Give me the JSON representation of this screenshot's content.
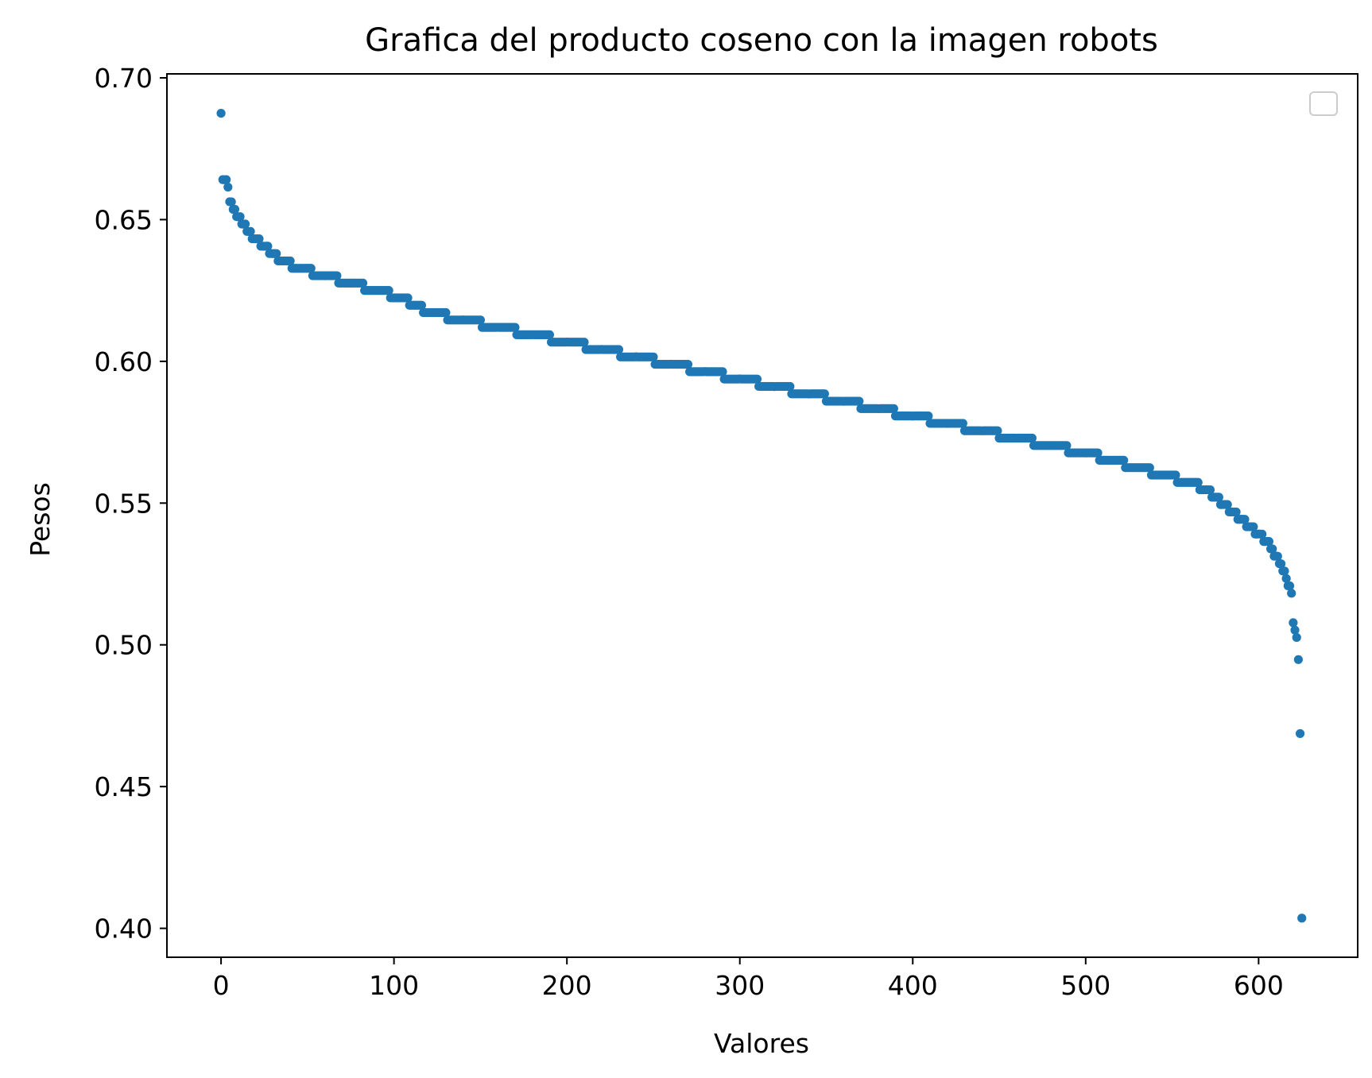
{
  "chart_data": {
    "type": "scatter",
    "title": "Grafica del producto coseno con la imagen robots",
    "xlabel": "Valores",
    "ylabel": "Pesos",
    "xlim": [
      -31.3,
      657.3
    ],
    "ylim": [
      0.3898,
      0.7014
    ],
    "xticks": [
      0,
      100,
      200,
      300,
      400,
      500,
      600
    ],
    "xtick_labels": [
      "0",
      "100",
      "200",
      "300",
      "400",
      "500",
      "600"
    ],
    "yticks": [
      0.4,
      0.45,
      0.5,
      0.55,
      0.6,
      0.65,
      0.7
    ],
    "ytick_labels": [
      "0.40",
      "0.45",
      "0.50",
      "0.55",
      "0.60",
      "0.65",
      "0.70"
    ],
    "grid": false,
    "legend": {
      "placement": "top-right",
      "entries": []
    },
    "series": [
      {
        "color": "#1f77b4",
        "n_points": 626,
        "shape_description": "sorted descending, plateau-step values",
        "x": [
          0,
          1,
          3,
          5,
          7,
          10,
          13,
          16,
          20,
          25,
          30,
          36,
          45,
          60,
          75,
          90,
          105,
          120,
          140,
          160,
          180,
          200,
          220,
          240,
          260,
          280,
          300,
          320,
          340,
          360,
          380,
          400,
          420,
          440,
          460,
          480,
          500,
          515,
          530,
          545,
          560,
          570,
          580,
          590,
          600,
          605,
          610,
          613,
          616,
          618,
          619,
          620,
          621,
          622,
          623,
          624,
          625
        ],
        "y": [
          0.6875,
          0.6641,
          0.6641,
          0.6563,
          0.6536,
          0.651,
          0.6484,
          0.6458,
          0.6432,
          0.6406,
          0.638,
          0.6354,
          0.6328,
          0.6302,
          0.6276,
          0.625,
          0.6224,
          0.6172,
          0.6146,
          0.612,
          0.6094,
          0.6068,
          0.6042,
          0.6016,
          0.599,
          0.5964,
          0.5938,
          0.5911,
          0.5885,
          0.5859,
          0.5833,
          0.5807,
          0.5781,
          0.5755,
          0.5729,
          0.5703,
          0.5677,
          0.5651,
          0.5625,
          0.5599,
          0.5573,
          0.5547,
          0.5495,
          0.5443,
          0.5391,
          0.5365,
          0.5313,
          0.5286,
          0.5234,
          0.5208,
          0.5182,
          0.5078,
          0.5052,
          0.5026,
          0.4948,
          0.4687,
          0.4036
        ]
      }
    ]
  }
}
